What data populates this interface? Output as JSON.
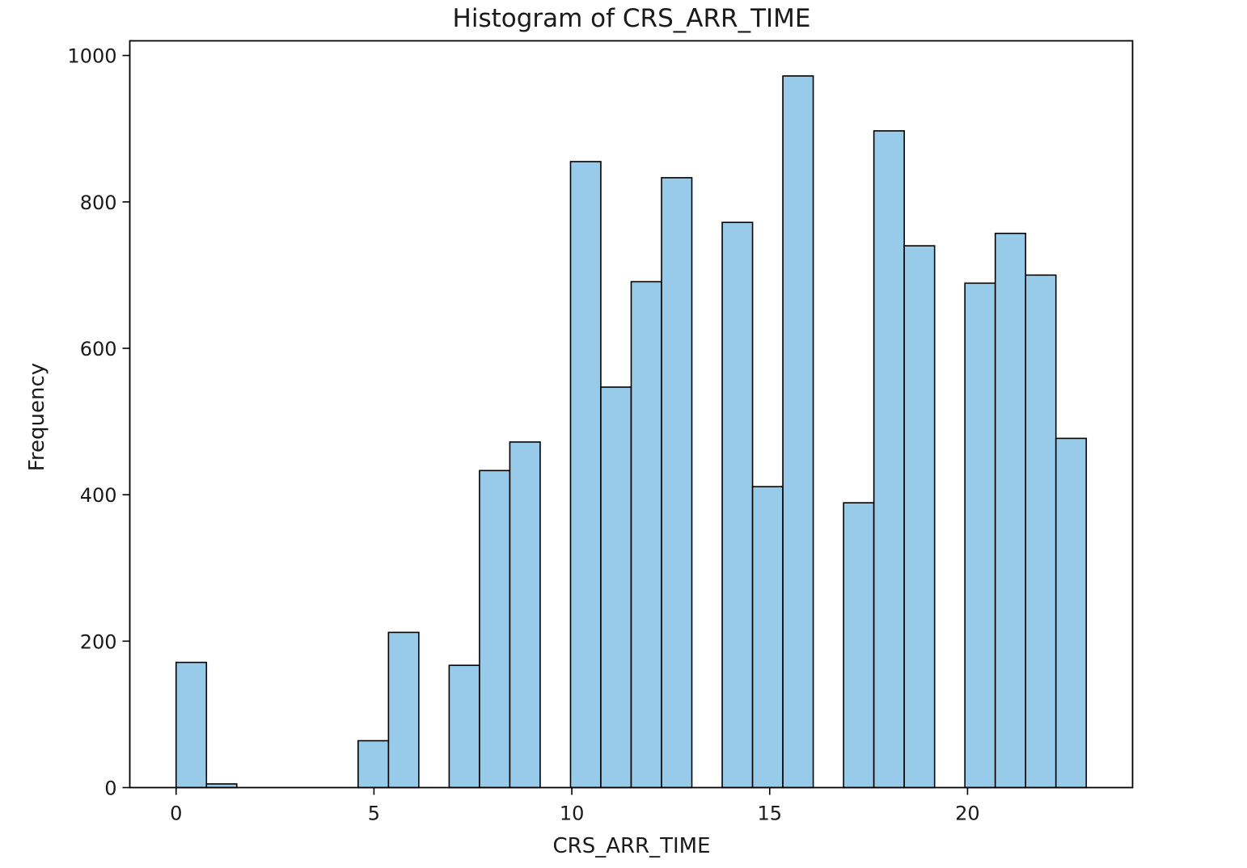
{
  "chart_data": {
    "type": "bar",
    "title": "Histogram of CRS_ARR_TIME",
    "xlabel": "CRS_ARR_TIME",
    "ylabel": "Frequency",
    "xlim": [
      -1.17,
      24.17
    ],
    "ylim": [
      0,
      1020
    ],
    "grid": false,
    "bar_color": "#97cbe9",
    "edge_color": "#000000",
    "x_ticks": [
      0,
      5,
      10,
      15,
      20
    ],
    "y_ticks": [
      0,
      200,
      400,
      600,
      800,
      1000
    ],
    "x_tick_labels": [
      "0",
      "5",
      "10",
      "15",
      "20"
    ],
    "y_tick_labels": [
      "0",
      "200",
      "400",
      "600",
      "800",
      "1000"
    ],
    "bins": [
      {
        "start": 0.0,
        "end": 0.767,
        "value": 171
      },
      {
        "start": 0.767,
        "end": 1.533,
        "value": 5
      },
      {
        "start": 1.533,
        "end": 2.3,
        "value": 0
      },
      {
        "start": 2.3,
        "end": 3.067,
        "value": 0
      },
      {
        "start": 3.067,
        "end": 3.833,
        "value": 0
      },
      {
        "start": 3.833,
        "end": 4.6,
        "value": 0
      },
      {
        "start": 4.6,
        "end": 5.367,
        "value": 64
      },
      {
        "start": 5.367,
        "end": 6.133,
        "value": 212
      },
      {
        "start": 6.133,
        "end": 6.9,
        "value": 0
      },
      {
        "start": 6.9,
        "end": 7.667,
        "value": 167
      },
      {
        "start": 7.667,
        "end": 8.433,
        "value": 433
      },
      {
        "start": 8.433,
        "end": 9.2,
        "value": 472
      },
      {
        "start": 9.2,
        "end": 9.967,
        "value": 0
      },
      {
        "start": 9.967,
        "end": 10.733,
        "value": 855
      },
      {
        "start": 10.733,
        "end": 11.5,
        "value": 547
      },
      {
        "start": 11.5,
        "end": 12.267,
        "value": 691
      },
      {
        "start": 12.267,
        "end": 13.033,
        "value": 833
      },
      {
        "start": 13.033,
        "end": 13.8,
        "value": 0
      },
      {
        "start": 13.8,
        "end": 14.567,
        "value": 772
      },
      {
        "start": 14.567,
        "end": 15.333,
        "value": 411
      },
      {
        "start": 15.333,
        "end": 16.1,
        "value": 972
      },
      {
        "start": 16.1,
        "end": 16.867,
        "value": 0
      },
      {
        "start": 16.867,
        "end": 17.633,
        "value": 389
      },
      {
        "start": 17.633,
        "end": 18.4,
        "value": 897
      },
      {
        "start": 18.4,
        "end": 19.167,
        "value": 740
      },
      {
        "start": 19.167,
        "end": 19.933,
        "value": 0
      },
      {
        "start": 19.933,
        "end": 20.7,
        "value": 689
      },
      {
        "start": 20.7,
        "end": 21.467,
        "value": 757
      },
      {
        "start": 21.467,
        "end": 22.233,
        "value": 700
      },
      {
        "start": 22.233,
        "end": 23.0,
        "value": 477
      }
    ]
  }
}
